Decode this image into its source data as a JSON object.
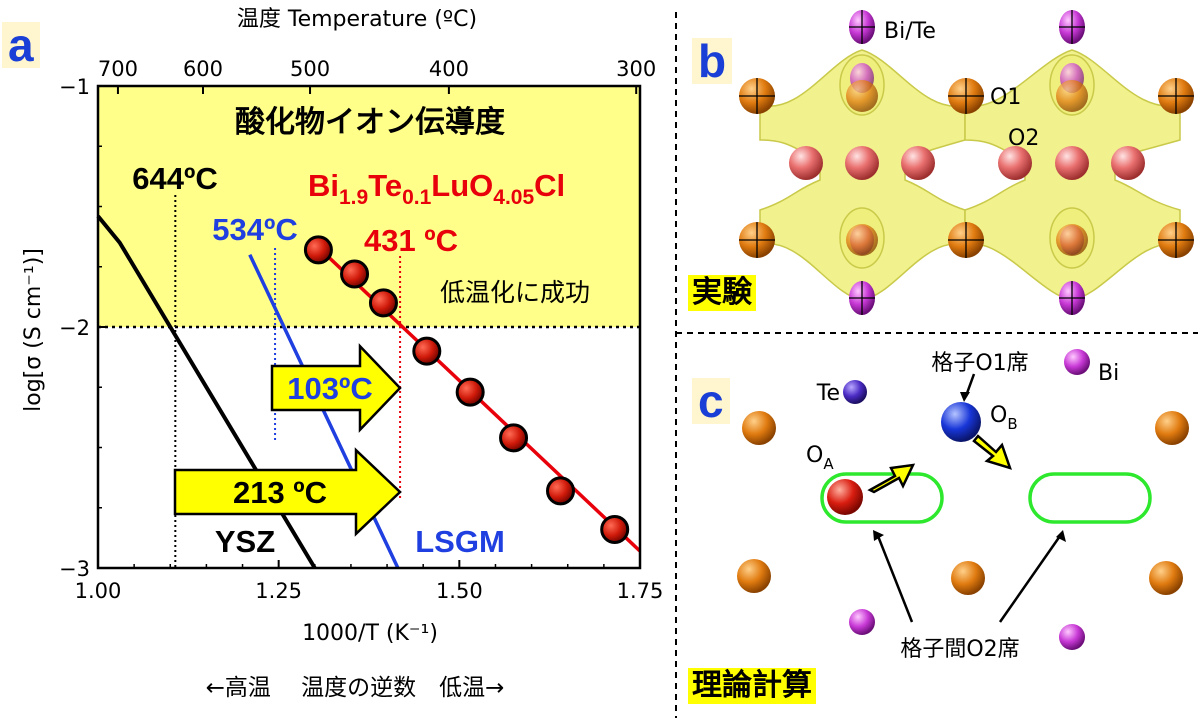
{
  "panels": {
    "a": "a",
    "b": "b",
    "c": "c"
  },
  "chart_data": {
    "type": "line",
    "title": "酸化物イオン伝導度",
    "xlabel": "1000/T (K⁻¹)",
    "ylabel": "log[σ (S cm⁻¹)]",
    "top_axis_label": "温度 Temperature (ºC)",
    "bottom_caption": "←高温　 温度の逆数　低温→",
    "xlim": [
      1.0,
      1.75
    ],
    "ylim": [
      -3,
      -1
    ],
    "x_ticks": [
      "1.00",
      "1.25",
      "1.50",
      "1.75"
    ],
    "y_ticks": [
      "−1",
      "−2",
      "−3"
    ],
    "top_ticks": [
      {
        "label": "700",
        "temp_c": 700
      },
      {
        "label": "600",
        "temp_c": 600
      },
      {
        "label": "500",
        "temp_c": 500
      },
      {
        "label": "400",
        "temp_c": 400
      },
      {
        "label": "300",
        "temp_c": 300
      }
    ],
    "threshold_y": -2,
    "shaded_region_color": "#ffff8a",
    "series": [
      {
        "name": "Bi1.9Te0.1LuO4.05Cl",
        "color": "#e8000b",
        "points": [
          {
            "x": 1.305,
            "y": -1.68
          },
          {
            "x": 1.355,
            "y": -1.78
          },
          {
            "x": 1.395,
            "y": -1.9
          },
          {
            "x": 1.455,
            "y": -2.1
          },
          {
            "x": 1.515,
            "y": -2.27
          },
          {
            "x": 1.575,
            "y": -2.46
          },
          {
            "x": 1.64,
            "y": -2.68
          },
          {
            "x": 1.715,
            "y": -2.84
          }
        ],
        "fit": [
          {
            "x": 1.305,
            "y": -1.67
          },
          {
            "x": 1.75,
            "y": -2.93
          }
        ],
        "crossing_temp_label": "431 ºC",
        "crossing_x": 1.418
      },
      {
        "name": "LSGM",
        "color": "#1f3fe0",
        "line": [
          {
            "x": 1.21,
            "y": -1.7
          },
          {
            "x": 1.415,
            "y": -3.0
          }
        ],
        "crossing_temp_label": "534ºC",
        "crossing_x": 1.245
      },
      {
        "name": "YSZ",
        "color": "#000000",
        "line": [
          {
            "x": 1.0,
            "y": -1.54
          },
          {
            "x": 1.03,
            "y": -1.65
          },
          {
            "x": 1.1,
            "y": -2.0
          },
          {
            "x": 1.3,
            "y": -3.0
          }
        ],
        "crossing_temp_label": "644ºC",
        "crossing_x": 1.107
      }
    ],
    "annotations": {
      "formula_main": "Bi",
      "formula_sub1": "1.9",
      "formula_te": "Te",
      "formula_sub2": "0.1",
      "formula_lu": "LuO",
      "formula_sub3": "4.05",
      "formula_cl": "Cl",
      "success_text": "低温化に成功",
      "arrow_small": "103ºC",
      "arrow_large": "213 ºC",
      "ysz_label": "YSZ",
      "lsgm_label": "LSGM"
    }
  },
  "panel_b": {
    "label_top": "Bi/Te",
    "label_o1": "O1",
    "label_o2": "O2",
    "tag": "実験"
  },
  "panel_c": {
    "label_te": "Te",
    "label_bi": "Bi",
    "label_lattice_o1": "格子O1席",
    "label_oa": "O",
    "label_oa_sub": "A",
    "label_ob": "O",
    "label_ob_sub": "B",
    "label_interstitial": "格子間O2席",
    "tag": "理論計算"
  }
}
